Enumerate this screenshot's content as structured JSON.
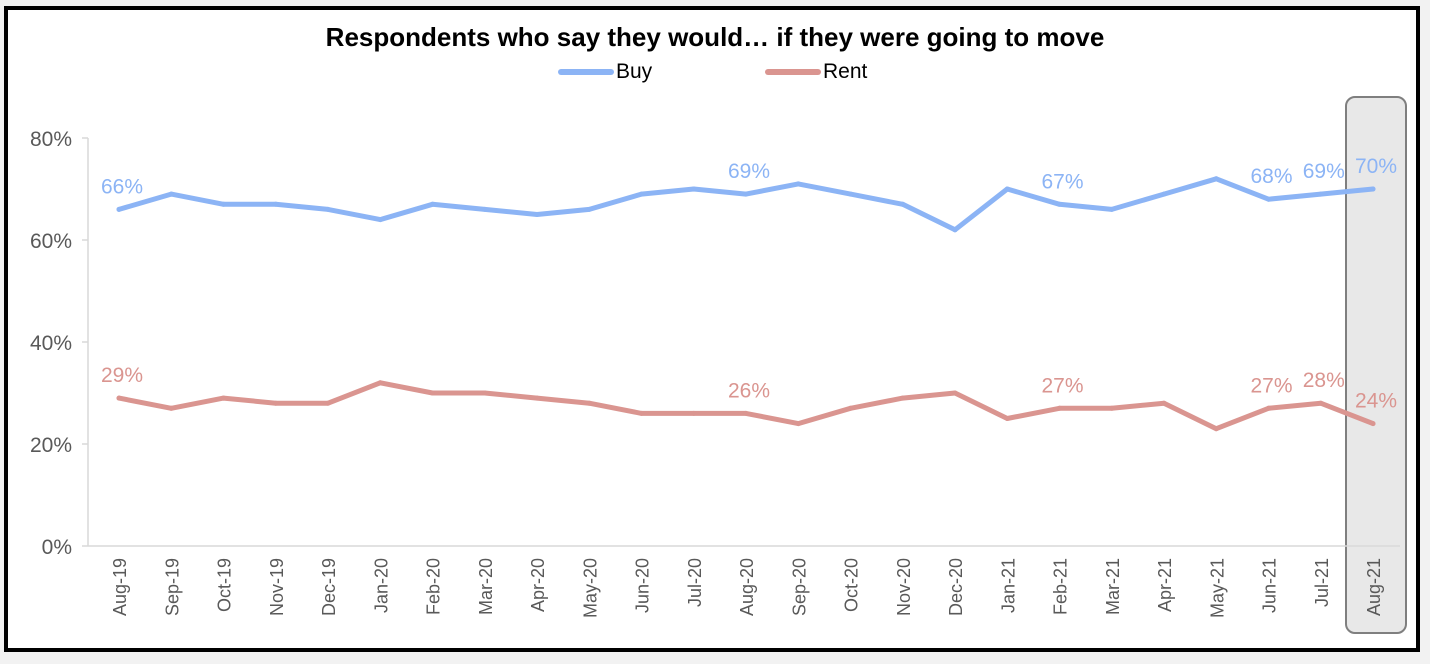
{
  "chart_data": {
    "type": "line",
    "title": "Respondents who say they would… if they were going to move",
    "xlabel": "",
    "ylabel": "",
    "ylim": [
      0,
      80
    ],
    "yticks": [
      "0%",
      "20%",
      "40%",
      "60%",
      "80%"
    ],
    "ytick_values": [
      0,
      20,
      40,
      60,
      80
    ],
    "grid": false,
    "legend_position": "top-center",
    "categories": [
      "Aug-19",
      "Sep-19",
      "Oct-19",
      "Nov-19",
      "Dec-19",
      "Jan-20",
      "Feb-20",
      "Mar-20",
      "Apr-20",
      "May-20",
      "Jun-20",
      "Jul-20",
      "Aug-20",
      "Sep-20",
      "Oct-20",
      "Nov-20",
      "Dec-20",
      "Jan-21",
      "Feb-21",
      "Mar-21",
      "Apr-21",
      "May-21",
      "Jun-21",
      "Jul-21",
      "Aug-21"
    ],
    "highlighted_category": "Aug-21",
    "series": [
      {
        "name": "Buy",
        "color": "#8cb4f5",
        "values": [
          66,
          69,
          67,
          67,
          66,
          64,
          67,
          66,
          65,
          66,
          69,
          70,
          69,
          71,
          69,
          67,
          62,
          70,
          67,
          66,
          69,
          72,
          68,
          69,
          70
        ],
        "labels": [
          {
            "index": 0,
            "text": "66%"
          },
          {
            "index": 12,
            "text": "69%"
          },
          {
            "index": 18,
            "text": "67%"
          },
          {
            "index": 22,
            "text": "68%"
          },
          {
            "index": 23,
            "text": "69%"
          },
          {
            "index": 24,
            "text": "70%"
          }
        ]
      },
      {
        "name": "Rent",
        "color": "#da9590",
        "values": [
          29,
          27,
          29,
          28,
          28,
          32,
          30,
          30,
          29,
          28,
          26,
          26,
          26,
          24,
          27,
          29,
          30,
          25,
          27,
          27,
          28,
          23,
          27,
          28,
          24
        ],
        "labels": [
          {
            "index": 0,
            "text": "29%"
          },
          {
            "index": 12,
            "text": "26%"
          },
          {
            "index": 18,
            "text": "27%"
          },
          {
            "index": 22,
            "text": "27%"
          },
          {
            "index": 23,
            "text": "28%"
          },
          {
            "index": 24,
            "text": "24%"
          }
        ]
      }
    ]
  }
}
